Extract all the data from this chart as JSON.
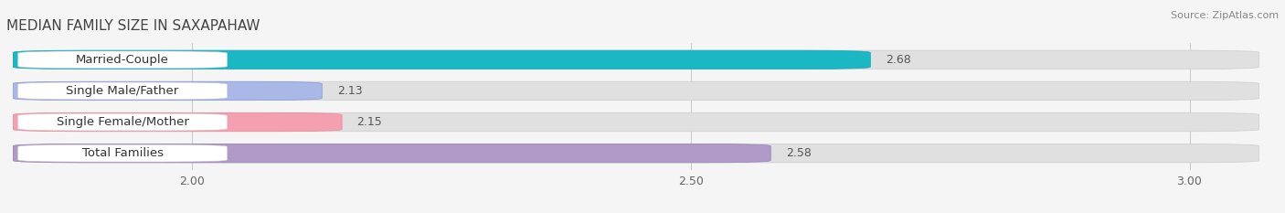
{
  "title": "MEDIAN FAMILY SIZE IN SAXAPAHAW",
  "source": "Source: ZipAtlas.com",
  "categories": [
    "Married-Couple",
    "Single Male/Father",
    "Single Female/Mother",
    "Total Families"
  ],
  "values": [
    2.68,
    2.13,
    2.15,
    2.58
  ],
  "bar_colors": [
    "#1ab8c4",
    "#aab8e8",
    "#f4a0b0",
    "#b09ac8"
  ],
  "bar_edge_colors": [
    "#18a8b4",
    "#8898d0",
    "#e888a0",
    "#9880b8"
  ],
  "xlim_min": 1.82,
  "xlim_max": 3.07,
  "xticks": [
    2.0,
    2.5,
    3.0
  ],
  "xtick_labels": [
    "2.00",
    "2.50",
    "3.00"
  ],
  "background_color": "#f5f5f5",
  "bar_background_color": "#e0e0e0",
  "label_fontsize": 9.5,
  "title_fontsize": 11,
  "value_fontsize": 9
}
